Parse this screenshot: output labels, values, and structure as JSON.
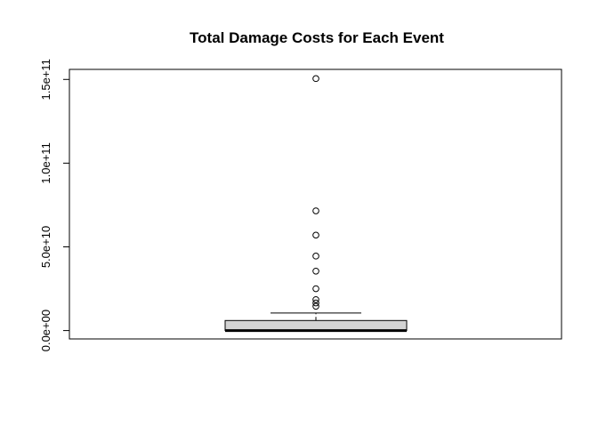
{
  "chart_data": {
    "type": "boxplot",
    "title": "Total Damage Costs for Each Event",
    "xlabel": "",
    "ylabel": "",
    "ylim": [
      -5000000000,
      156000000000
    ],
    "y_ticks": [
      0,
      50000000000,
      100000000000,
      150000000000
    ],
    "y_tick_labels": [
      "0.0e+00",
      "5.0e+10",
      "1.0e+11",
      "1.5e+11"
    ],
    "box": {
      "min": 0,
      "q1": 0,
      "median": 0,
      "q3": 6000000000,
      "whisker_high": 10500000000
    },
    "outliers": [
      150500000000,
      71500000000,
      57000000000,
      44500000000,
      35500000000,
      25000000000,
      18500000000,
      16500000000,
      14500000000
    ],
    "colors": {
      "box_fill": "#d3d3d3",
      "stroke": "#000000"
    }
  }
}
